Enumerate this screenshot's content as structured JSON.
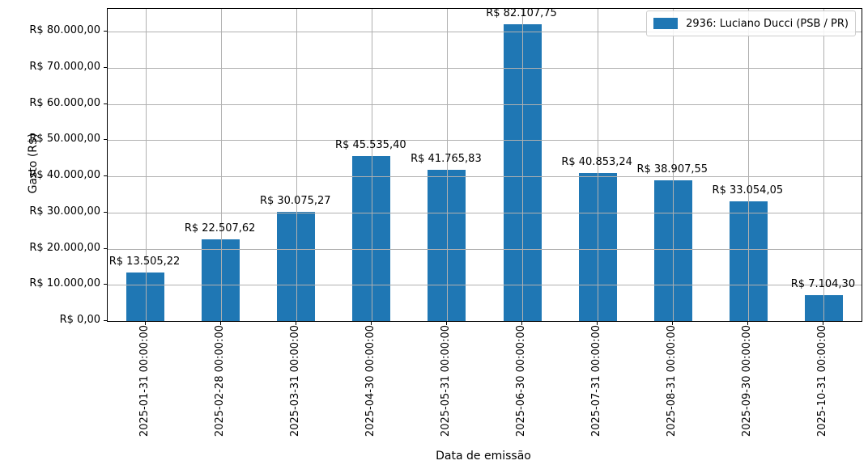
{
  "chart_data": {
    "type": "bar",
    "title": "",
    "xlabel": "Data de emissão",
    "ylabel": "Gasto (R$)",
    "categories": [
      "2025-01-31 00:00:00",
      "2025-02-28 00:00:00",
      "2025-03-31 00:00:00",
      "2025-04-30 00:00:00",
      "2025-05-31 00:00:00",
      "2025-06-30 00:00:00",
      "2025-07-31 00:00:00",
      "2025-08-31 00:00:00",
      "2025-09-30 00:00:00",
      "2025-10-31 00:00:00"
    ],
    "series": [
      {
        "name": "2936: Luciano Ducci (PSB / PR)",
        "values": [
          13505.22,
          22507.62,
          30075.27,
          45535.4,
          41765.83,
          82107.75,
          40853.24,
          38907.55,
          33054.05,
          7104.3
        ]
      }
    ],
    "bar_value_labels": [
      "R$ 13.505,22",
      "R$ 22.507,62",
      "R$ 30.075,27",
      "R$ 45.535,40",
      "R$ 41.765,83",
      "R$ 82.107,75",
      "R$ 40.853,24",
      "R$ 38.907,55",
      "R$ 33.054,05",
      "R$ 7.104,30"
    ],
    "yticks": {
      "values": [
        0,
        10000,
        20000,
        30000,
        40000,
        50000,
        60000,
        70000,
        80000
      ],
      "labels": [
        "R$ 0,00",
        "R$ 10.000,00",
        "R$ 20.000,00",
        "R$ 30.000,00",
        "R$ 40.000,00",
        "R$ 50.000,00",
        "R$ 60.000,00",
        "R$ 70.000,00",
        "R$ 80.000,00"
      ]
    },
    "ylim": [
      0,
      86300
    ],
    "grid": true,
    "legend_position": "upper right",
    "colors": {
      "bar": "#1f77b4",
      "grid": "#b0b0b0",
      "text": "#000000",
      "spine": "#000000"
    }
  }
}
